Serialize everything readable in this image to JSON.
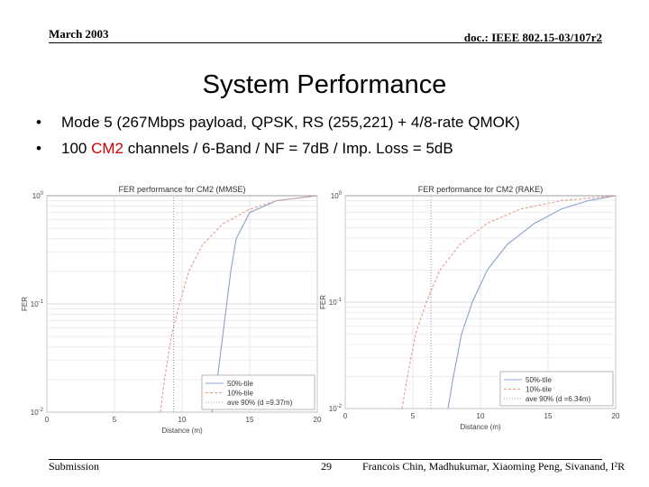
{
  "header": {
    "date": "March 2003",
    "doc": "doc.: IEEE 802.15-03/107r2"
  },
  "title": "System Performance",
  "bullets": [
    {
      "text": "Mode 5 (267Mbps payload, QPSK, RS (255,221) + 4/8-rate QMOK)"
    },
    {
      "pre": "100 ",
      "accent": "CM2",
      "post": " channels / 6-Band / NF = 7dB / Imp. Loss = 5dB"
    }
  ],
  "colors": {
    "accent": "#cc0000",
    "series_50": "#8aa0cc",
    "series_10": "#e0a090",
    "series_ave": "#a0a0a0"
  },
  "chart_data": [
    {
      "type": "line",
      "title": "FER performance for CM2 (MMSE)",
      "xlabel": "Distance (m)",
      "ylabel": "FER",
      "xlim": [
        0,
        20
      ],
      "ylim": [
        0.01,
        1
      ],
      "yscale": "log",
      "xticks": [
        "0",
        "5",
        "10",
        "15",
        "20"
      ],
      "yticks": [
        "10^0",
        "10^-1",
        "10^-2"
      ],
      "grid": true,
      "legend": "bottom-right",
      "series": [
        {
          "name": "50%-tile",
          "x": [
            12.2,
            12.6,
            13.0,
            13.3,
            13.6,
            14.0,
            15.0,
            17.0,
            20.0
          ],
          "y": [
            0.01,
            0.02,
            0.05,
            0.1,
            0.2,
            0.4,
            0.7,
            0.9,
            1.0
          ]
        },
        {
          "name": "10%-tile",
          "x": [
            8.4,
            8.7,
            9.2,
            9.8,
            10.5,
            11.5,
            13.0,
            15.0,
            17.0,
            20.0
          ],
          "y": [
            0.01,
            0.02,
            0.05,
            0.1,
            0.2,
            0.35,
            0.55,
            0.75,
            0.9,
            1.0
          ]
        },
        {
          "name": "ave 90% (d =9.37m)",
          "x": [
            9.37,
            9.37
          ],
          "y": [
            0.01,
            1.0
          ]
        }
      ]
    },
    {
      "type": "line",
      "title": "FER performance for CM2 (RAKE)",
      "xlabel": "Distance (m)",
      "ylabel": "FER",
      "xlim": [
        0,
        20
      ],
      "ylim": [
        0.01,
        1
      ],
      "yscale": "log",
      "xticks": [
        "0",
        "5",
        "10",
        "15",
        "20"
      ],
      "yticks": [
        "10^0",
        "10^-1",
        "10^-2"
      ],
      "grid": true,
      "legend": "bottom-right",
      "series": [
        {
          "name": "50%-tile",
          "x": [
            7.6,
            8.0,
            8.6,
            9.4,
            10.5,
            12.0,
            14.0,
            16.0,
            18.0,
            20.0
          ],
          "y": [
            0.01,
            0.02,
            0.05,
            0.1,
            0.2,
            0.35,
            0.55,
            0.75,
            0.9,
            1.0
          ]
        },
        {
          "name": "10%-tile",
          "x": [
            4.2,
            4.6,
            5.2,
            6.0,
            7.0,
            8.5,
            10.5,
            13.0,
            16.0,
            20.0
          ],
          "y": [
            0.01,
            0.02,
            0.05,
            0.1,
            0.2,
            0.35,
            0.55,
            0.75,
            0.9,
            1.0
          ]
        },
        {
          "name": "ave 90% (d =6.34m)",
          "x": [
            6.34,
            6.34
          ],
          "y": [
            0.01,
            1.0
          ]
        }
      ]
    }
  ],
  "footer": {
    "left": "Submission",
    "page": "29",
    "right": "Francois Chin, Madhukumar, Xiaoming Peng, Sivanand, I²R"
  }
}
